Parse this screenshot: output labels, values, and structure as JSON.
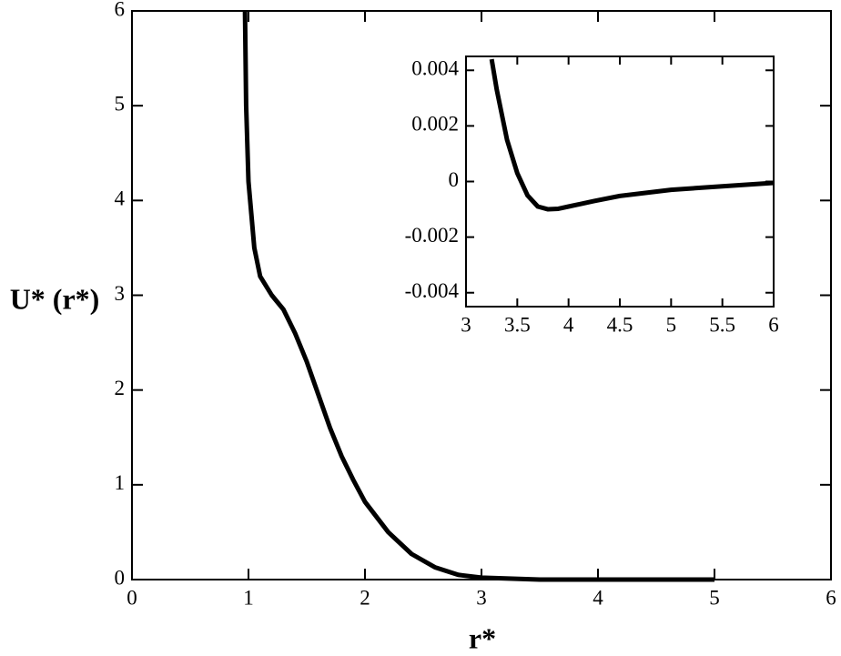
{
  "chart_data": [
    {
      "type": "line",
      "x_label": "r*",
      "y_label": "U* (r*)",
      "xlim": [
        0,
        6
      ],
      "ylim": [
        0,
        6
      ],
      "xticks": [
        0,
        1,
        2,
        3,
        4,
        5,
        6
      ],
      "yticks": [
        0,
        1,
        2,
        3,
        4,
        5,
        6
      ],
      "series": [
        {
          "color": "#000000",
          "x": [
            0.97,
            0.98,
            1.0,
            1.05,
            1.1,
            1.2,
            1.3,
            1.4,
            1.5,
            1.6,
            1.7,
            1.8,
            1.9,
            2.0,
            2.2,
            2.4,
            2.6,
            2.8,
            3.0,
            3.5,
            4.0,
            4.5,
            5.0
          ],
          "values": [
            6,
            5,
            4.2,
            3.5,
            3.2,
            3.0,
            2.85,
            2.6,
            2.3,
            1.95,
            1.6,
            1.3,
            1.05,
            0.82,
            0.5,
            0.27,
            0.13,
            0.05,
            0.02,
            0,
            0,
            0,
            0
          ]
        }
      ]
    },
    {
      "type": "line",
      "xlim": [
        3,
        6
      ],
      "ylim": [
        -0.0045,
        0.0045
      ],
      "xticks": [
        3,
        3.5,
        4,
        4.5,
        5,
        5.5,
        6
      ],
      "yticks": [
        -0.004,
        -0.002,
        0,
        0.002,
        0.004
      ],
      "series": [
        {
          "color": "#000000",
          "x": [
            3.25,
            3.3,
            3.4,
            3.5,
            3.6,
            3.7,
            3.8,
            3.9,
            4.0,
            4.25,
            4.5,
            5.0,
            5.5,
            6.0
          ],
          "values": [
            0.0044,
            0.0033,
            0.0015,
            0.0003,
            -0.0005,
            -0.0009,
            -0.001,
            -0.00098,
            -0.0009,
            -0.0007,
            -0.00052,
            -0.0003,
            -0.00017,
            -5e-05
          ]
        }
      ]
    }
  ]
}
